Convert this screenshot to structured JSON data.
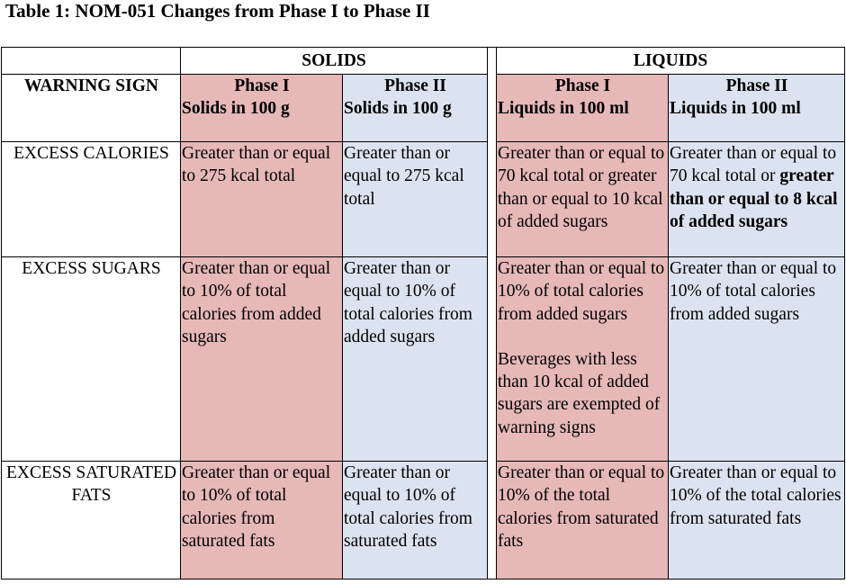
{
  "title": "Table 1: NOM-051 Changes from Phase I to Phase II",
  "groups": {
    "solids": "SOLIDS",
    "liquids": "LIQUIDS"
  },
  "headers": {
    "warning_sign": "WARNING SIGN",
    "solids_phase1": {
      "phase": "Phase I",
      "unit": "Solids in 100 g"
    },
    "solids_phase2": {
      "phase": "Phase II",
      "unit": "Solids in 100 g"
    },
    "liquids_phase1": {
      "phase": "Phase I",
      "unit": "Liquids in 100 ml"
    },
    "liquids_phase2": {
      "phase": "Phase II",
      "unit": "Liquids in 100 ml"
    }
  },
  "rows": [
    {
      "label": "EXCESS CALORIES",
      "solids_phase1": "Greater than or equal to 275 kcal total",
      "solids_phase2": "Greater than or equal to 275 kcal total",
      "liquids_phase1": "Greater than or equal to 70 kcal total or greater than or equal to 10 kcal of added sugars",
      "liquids_phase2_prefix": "Greater than or equal to 70 kcal total or ",
      "liquids_phase2_bold": "greater than or equal to 8 kcal of added sugars"
    },
    {
      "label": "EXCESS SUGARS",
      "solids_phase1": "Greater than or equal to 10% of total calories from added sugars",
      "solids_phase2": "Greater than or equal to 10% of total calories from added sugars",
      "liquids_phase1": "Greater than or equal to 10% of total calories from added sugars",
      "liquids_phase1_note": "Beverages with less than 10 kcal of added sugars are exempted of warning signs",
      "liquids_phase2": "Greater than or equal to 10% of total calories from added sugars"
    },
    {
      "label": "EXCESS SATURATED FATS",
      "solids_phase1": "Greater than or equal to 10% of total calories from saturated fats",
      "solids_phase2": "Greater than or equal to 10% of total calories from saturated fats",
      "liquids_phase1": "Greater than or equal to 10% of the total calories from saturated fats",
      "liquids_phase2": "Greater than or equal to 10% of the total calories from saturated fats"
    }
  ]
}
